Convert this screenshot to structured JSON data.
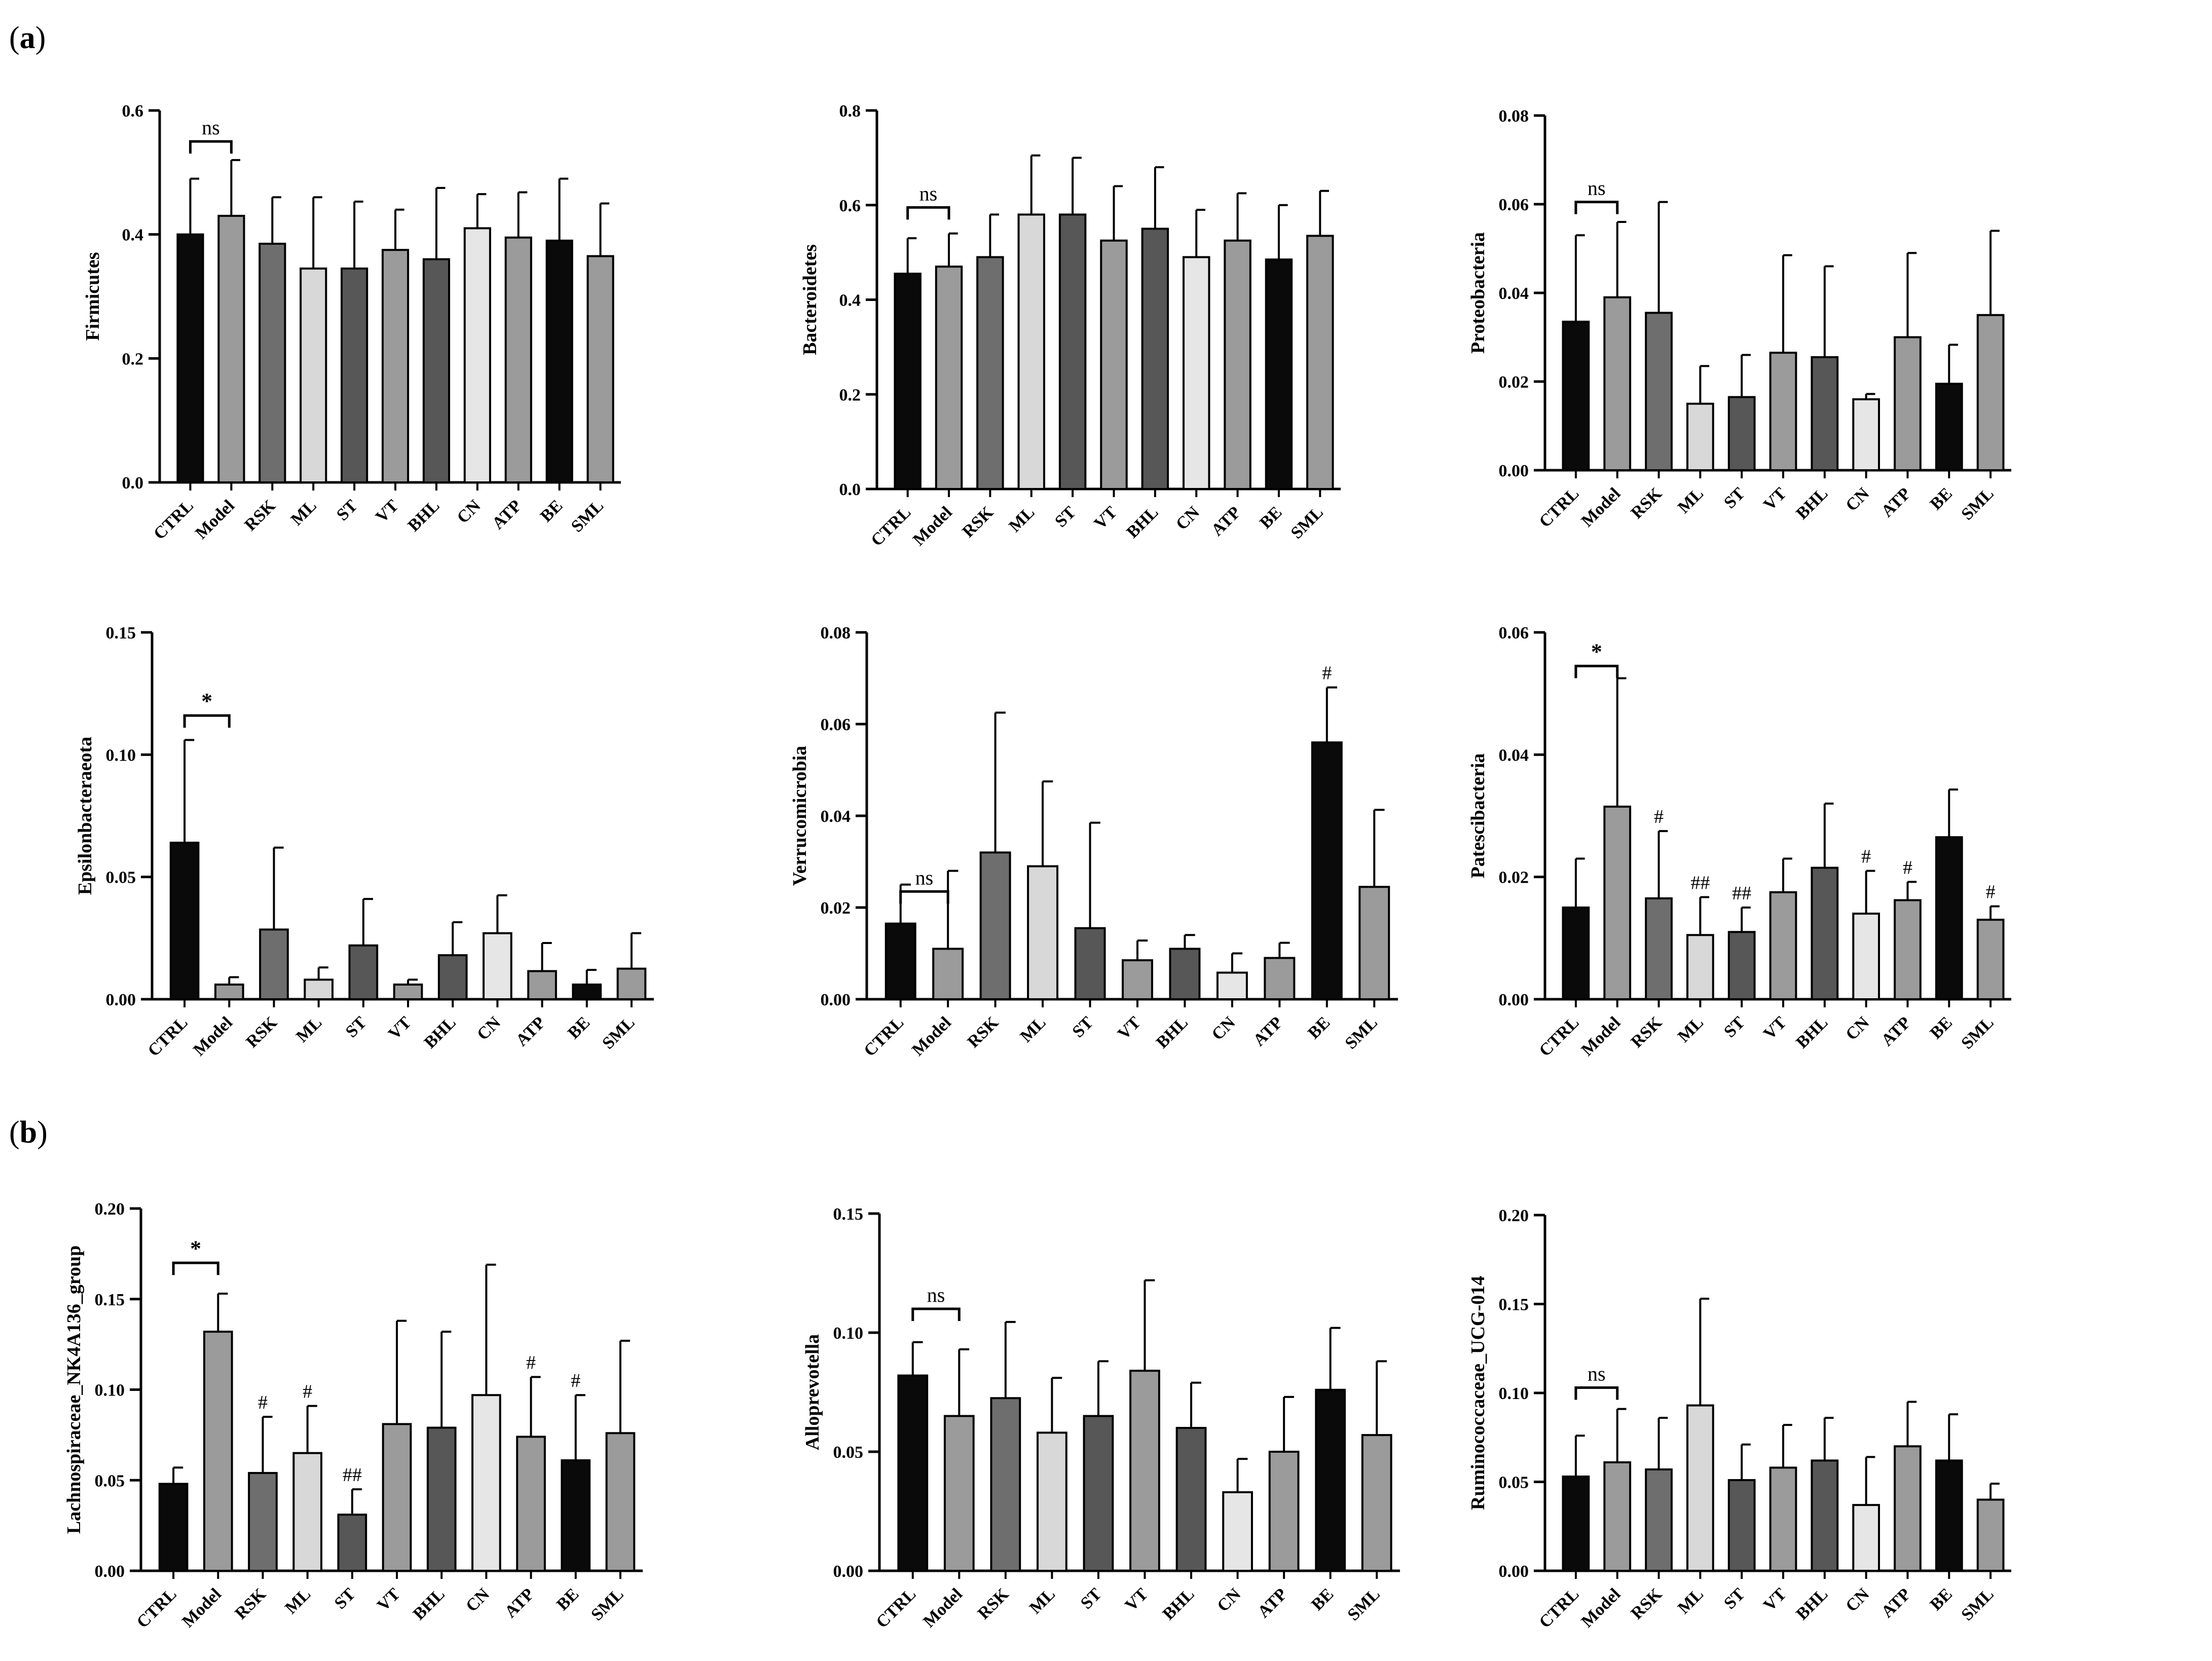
{
  "panel_labels": {
    "a": "a",
    "b": "b"
  },
  "colors": {
    "CTRL": "#0a0a0a",
    "Model": "#9b9b9b",
    "RSK": "#6e6e6e",
    "ML": "#d8d8d8",
    "ST": "#575757",
    "VT": "#9b9b9b",
    "BHL": "#575757",
    "CN": "#e6e6e6",
    "ATP": "#9b9b9b",
    "BE": "#0a0a0a",
    "SML": "#9b9b9b",
    "axis": "#000000"
  },
  "chart_data": [
    {
      "type": "bar",
      "panel": "a",
      "title": "",
      "xlabel": "",
      "ylabel": "Firmicutes",
      "categories": [
        "CTRL",
        "Model",
        "RSK",
        "ML",
        "ST",
        "VT",
        "BHL",
        "CN",
        "ATP",
        "BE",
        "SML"
      ],
      "values": [
        0.4,
        0.43,
        0.385,
        0.345,
        0.345,
        0.375,
        0.36,
        0.41,
        0.395,
        0.39,
        0.365
      ],
      "errors": [
        0.09,
        0.09,
        0.075,
        0.115,
        0.108,
        0.065,
        0.115,
        0.055,
        0.073,
        0.1,
        0.085
      ],
      "ylim": [
        0,
        0.6
      ],
      "yticks": [
        "0.0",
        "0.2",
        "0.4",
        "0.6"
      ],
      "comparison": {
        "label": "ns",
        "from": 0,
        "to": 1,
        "y": 0.55
      },
      "bar_labels": []
    },
    {
      "type": "bar",
      "panel": "a",
      "title": "",
      "xlabel": "",
      "ylabel": "Bacteroidetes",
      "categories": [
        "CTRL",
        "Model",
        "RSK",
        "ML",
        "ST",
        "VT",
        "BHL",
        "CN",
        "ATP",
        "BE",
        "SML"
      ],
      "values": [
        0.455,
        0.47,
        0.49,
        0.58,
        0.58,
        0.525,
        0.55,
        0.49,
        0.525,
        0.485,
        0.535
      ],
      "errors": [
        0.075,
        0.07,
        0.09,
        0.125,
        0.12,
        0.115,
        0.13,
        0.1,
        0.1,
        0.115,
        0.095
      ],
      "ylim": [
        0,
        0.8
      ],
      "yticks": [
        "0.0",
        "0.2",
        "0.4",
        "0.6",
        "0.8"
      ],
      "comparison": {
        "label": "ns",
        "from": 0,
        "to": 1,
        "y": 0.595
      },
      "bar_labels": []
    },
    {
      "type": "bar",
      "panel": "a",
      "title": "",
      "xlabel": "",
      "ylabel": "Proteobacteria",
      "categories": [
        "CTRL",
        "Model",
        "RSK",
        "ML",
        "ST",
        "VT",
        "BHL",
        "CN",
        "ATP",
        "BE",
        "SML"
      ],
      "values": [
        0.0335,
        0.039,
        0.0355,
        0.015,
        0.0165,
        0.0265,
        0.0255,
        0.016,
        0.03,
        0.0195,
        0.035
      ],
      "errors": [
        0.0195,
        0.017,
        0.025,
        0.0085,
        0.0095,
        0.022,
        0.0205,
        0.0012,
        0.019,
        0.0088,
        0.019
      ],
      "ylim": [
        0,
        0.08
      ],
      "yticks": [
        "0.00",
        "0.02",
        "0.04",
        "0.06",
        "0.08"
      ],
      "comparison": {
        "label": "ns",
        "from": 0,
        "to": 1,
        "y": 0.0605
      },
      "bar_labels": []
    },
    {
      "type": "bar",
      "panel": "a",
      "title": "",
      "xlabel": "",
      "ylabel": "Epsilonbacteraeota",
      "categories": [
        "CTRL",
        "Model",
        "RSK",
        "ML",
        "ST",
        "VT",
        "BHL",
        "CN",
        "ATP",
        "BE",
        "SML"
      ],
      "values": [
        0.064,
        0.006,
        0.0285,
        0.008,
        0.022,
        0.006,
        0.018,
        0.027,
        0.0115,
        0.006,
        0.0125
      ],
      "errors": [
        0.042,
        0.003,
        0.0335,
        0.005,
        0.019,
        0.002,
        0.0135,
        0.0155,
        0.0115,
        0.006,
        0.0145
      ],
      "ylim": [
        0,
        0.15
      ],
      "yticks": [
        "0.00",
        "0.05",
        "0.10",
        "0.15"
      ],
      "comparison": {
        "label": "*",
        "from": 0,
        "to": 1,
        "y": 0.116
      },
      "bar_labels": []
    },
    {
      "type": "bar",
      "panel": "a",
      "title": "",
      "xlabel": "",
      "ylabel": "Verrucomicrobia",
      "categories": [
        "CTRL",
        "Model",
        "RSK",
        "ML",
        "ST",
        "VT",
        "BHL",
        "CN",
        "ATP",
        "BE",
        "SML"
      ],
      "values": [
        0.0165,
        0.011,
        0.032,
        0.029,
        0.0155,
        0.0085,
        0.011,
        0.0058,
        0.009,
        0.056,
        0.0245
      ],
      "errors": [
        0.0085,
        0.017,
        0.0305,
        0.0185,
        0.023,
        0.0043,
        0.003,
        0.0042,
        0.0033,
        0.012,
        0.0168
      ],
      "ylim": [
        0,
        0.08
      ],
      "yticks": [
        "0.00",
        "0.02",
        "0.04",
        "0.06",
        "0.08"
      ],
      "comparison": {
        "label": "ns",
        "from": 0,
        "to": 1,
        "y": 0.0235
      },
      "bar_labels": [
        {
          "index": 9,
          "text": "#"
        }
      ]
    },
    {
      "type": "bar",
      "panel": "a",
      "title": "",
      "xlabel": "",
      "ylabel": "Patescibacteria",
      "categories": [
        "CTRL",
        "Model",
        "RSK",
        "ML",
        "ST",
        "VT",
        "BHL",
        "CN",
        "ATP",
        "BE",
        "SML"
      ],
      "values": [
        0.015,
        0.0315,
        0.0165,
        0.0105,
        0.011,
        0.0175,
        0.0215,
        0.014,
        0.0162,
        0.0265,
        0.013
      ],
      "errors": [
        0.008,
        0.021,
        0.011,
        0.0062,
        0.004,
        0.0055,
        0.0105,
        0.007,
        0.003,
        0.0078,
        0.0022
      ],
      "ylim": [
        0,
        0.06
      ],
      "yticks": [
        "0.00",
        "0.02",
        "0.04",
        "0.06"
      ],
      "comparison": {
        "label": "*",
        "from": 0,
        "to": 1,
        "y": 0.0545
      },
      "bar_labels": [
        {
          "index": 2,
          "text": "#"
        },
        {
          "index": 3,
          "text": "##"
        },
        {
          "index": 4,
          "text": "##"
        },
        {
          "index": 7,
          "text": "#"
        },
        {
          "index": 8,
          "text": "#"
        },
        {
          "index": 10,
          "text": "#"
        }
      ]
    },
    {
      "type": "bar",
      "panel": "b",
      "title": "",
      "xlabel": "",
      "ylabel": "Lachnospiraceae_NK4A136_group",
      "categories": [
        "CTRL",
        "Model",
        "RSK",
        "ML",
        "ST",
        "VT",
        "BHL",
        "CN",
        "ATP",
        "BE",
        "SML"
      ],
      "values": [
        0.048,
        0.132,
        0.054,
        0.065,
        0.031,
        0.081,
        0.079,
        0.097,
        0.074,
        0.061,
        0.076
      ],
      "errors": [
        0.009,
        0.021,
        0.031,
        0.026,
        0.014,
        0.057,
        0.053,
        0.072,
        0.033,
        0.036,
        0.051
      ],
      "ylim": [
        0,
        0.2
      ],
      "yticks": [
        "0.00",
        "0.05",
        "0.10",
        "0.15",
        "0.20"
      ],
      "comparison": {
        "label": "*",
        "from": 0,
        "to": 1,
        "y": 0.17
      },
      "bar_labels": [
        {
          "index": 2,
          "text": "#"
        },
        {
          "index": 3,
          "text": "#"
        },
        {
          "index": 4,
          "text": "##"
        },
        {
          "index": 8,
          "text": "#"
        },
        {
          "index": 9,
          "text": "#"
        }
      ]
    },
    {
      "type": "bar",
      "panel": "b",
      "title": "",
      "xlabel": "",
      "ylabel": "Alloprevotella",
      "categories": [
        "CTRL",
        "Model",
        "RSK",
        "ML",
        "ST",
        "VT",
        "BHL",
        "CN",
        "ATP",
        "BE",
        "SML"
      ],
      "values": [
        0.082,
        0.065,
        0.0725,
        0.058,
        0.065,
        0.084,
        0.06,
        0.033,
        0.05,
        0.076,
        0.057
      ],
      "errors": [
        0.014,
        0.028,
        0.032,
        0.023,
        0.023,
        0.038,
        0.019,
        0.014,
        0.023,
        0.026,
        0.031
      ],
      "ylim": [
        0,
        0.15
      ],
      "yticks": [
        "0.00",
        "0.05",
        "0.10",
        "0.15"
      ],
      "comparison": {
        "label": "ns",
        "from": 0,
        "to": 1,
        "y": 0.11
      },
      "bar_labels": []
    },
    {
      "type": "bar",
      "panel": "b",
      "title": "",
      "xlabel": "",
      "ylabel": "Ruminococcaceae_UCG-014",
      "categories": [
        "CTRL",
        "Model",
        "RSK",
        "ML",
        "ST",
        "VT",
        "BHL",
        "CN",
        "ATP",
        "BE",
        "SML"
      ],
      "values": [
        0.053,
        0.061,
        0.057,
        0.093,
        0.051,
        0.058,
        0.062,
        0.037,
        0.07,
        0.062,
        0.04
      ],
      "errors": [
        0.023,
        0.03,
        0.029,
        0.06,
        0.02,
        0.024,
        0.024,
        0.027,
        0.025,
        0.026,
        0.009
      ],
      "ylim": [
        0,
        0.2
      ],
      "yticks": [
        "0.00",
        "0.05",
        "0.10",
        "0.15",
        "0.20"
      ],
      "comparison": {
        "label": "ns",
        "from": 0,
        "to": 1,
        "y": 0.103
      },
      "bar_labels": []
    }
  ]
}
